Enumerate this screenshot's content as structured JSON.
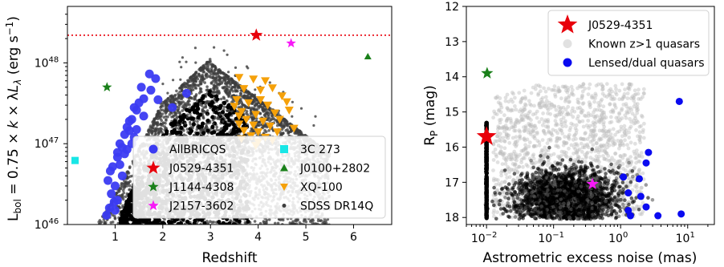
{
  "chart_data": [
    {
      "type": "scatter",
      "xlabel": "Redshift",
      "ylabel": "L_bol = 0.75 × k × λL_λ (erg s⁻¹)",
      "ylabel_parts": [
        "L",
        "bol",
        " = 0.75 × ",
        "k",
        " × λ",
        "L",
        "λ",
        " (erg s",
        "−1",
        ")"
      ],
      "x_scale": "linear",
      "y_scale": "log",
      "xlim": [
        0,
        6.8
      ],
      "ylim": [
        1e+46,
        5e+48
      ],
      "x_ticks": [
        {
          "value": 1,
          "label": "1"
        },
        {
          "value": 2,
          "label": "2"
        },
        {
          "value": 3,
          "label": "3"
        },
        {
          "value": 4,
          "label": "4"
        },
        {
          "value": 5,
          "label": "5"
        },
        {
          "value": 6,
          "label": "6"
        }
      ],
      "y_ticks": [
        {
          "value": 1e+46,
          "base": "10",
          "exp": "46"
        },
        {
          "value": 1e+47,
          "base": "10",
          "exp": "47"
        },
        {
          "value": 1e+48,
          "base": "10",
          "exp": "48"
        }
      ],
      "hline": {
        "y": 2.2e+48,
        "color": "#e8000b",
        "style": "dotted"
      },
      "series": [
        {
          "name": "AllBRICQS",
          "marker": "circle",
          "color": "#3b3bf2",
          "points": [
            [
              0.95,
              5.2e+46
            ],
            [
              0.9,
              4.6e+46
            ],
            [
              0.85,
              3.5e+46
            ],
            [
              0.92,
              2.4e+46
            ],
            [
              0.88,
              1.6e+46
            ],
            [
              0.82,
              1.3e+46
            ],
            [
              0.98,
              1.9e+46
            ],
            [
              1.05,
              6.8e+46
            ],
            [
              1.1,
              1e+47
            ],
            [
              1.15,
              9e+46
            ],
            [
              1.2,
              1.3e+47
            ],
            [
              1.25,
              1.6e+47
            ],
            [
              1.3,
              1.45e+47
            ],
            [
              1.35,
              2e+47
            ],
            [
              1.45,
              2.6e+47
            ],
            [
              1.5,
              3.2e+47
            ],
            [
              1.6,
              3.6e+47
            ],
            [
              1.75,
              4.6e+47
            ],
            [
              1.85,
              6.4e+47
            ],
            [
              1.72,
              7.3e+47
            ],
            [
              1.55,
              5e+47
            ],
            [
              1.4,
              2.8e+47
            ],
            [
              1.3,
              1.9e+47
            ],
            [
              1.05,
              7.8e+46
            ],
            [
              1.1,
              5.5e+46
            ],
            [
              1.2,
              7.5e+46
            ],
            [
              1.15,
              4e+46
            ],
            [
              1.25,
              8.5e+46
            ],
            [
              1.4,
              1.2e+47
            ],
            [
              1.6,
              2.2e+47
            ],
            [
              1.9,
              3.5e+47
            ],
            [
              2.2,
              2.8e+47
            ],
            [
              2.5,
              4.2e+47
            ],
            [
              1.0,
              3e+46
            ],
            [
              1.05,
              2e+46
            ],
            [
              1.0,
              1.5e+46
            ],
            [
              1.35,
              1e+47
            ],
            [
              1.45,
              1.5e+47
            ]
          ]
        },
        {
          "name": "J0529-4351",
          "marker": "star",
          "color": "#e8000b",
          "points": [
            [
              3.96,
              2.2e+48
            ]
          ],
          "size": "large"
        },
        {
          "name": "J1144-4308",
          "marker": "star",
          "color": "#1a801a",
          "points": [
            [
              0.83,
              5e+47
            ]
          ]
        },
        {
          "name": "J2157-3602",
          "marker": "star",
          "color": "#f719f7",
          "points": [
            [
              4.69,
              1.75e+48
            ]
          ]
        },
        {
          "name": "3C 273",
          "marker": "square",
          "color": "#19e6e6",
          "points": [
            [
              0.16,
              6.2e+46
            ]
          ]
        },
        {
          "name": "J0100+2802",
          "marker": "triangle-up",
          "color": "#1a801a",
          "points": [
            [
              6.3,
              1.2e+48
            ]
          ]
        },
        {
          "name": "XQ-100",
          "marker": "triangle-down",
          "color": "#f5a10a",
          "points": [
            [
              3.6,
              6.6e+47
            ],
            [
              3.9,
              6.3e+47
            ],
            [
              4.15,
              6e+47
            ],
            [
              3.7,
              4.8e+47
            ],
            [
              4.05,
              4.6e+47
            ],
            [
              4.3,
              4.9e+47
            ],
            [
              4.5,
              3.9e+47
            ],
            [
              3.55,
              3.5e+47
            ],
            [
              3.8,
              3.2e+47
            ],
            [
              4.2,
              3e+47
            ],
            [
              4.6,
              3.3e+47
            ],
            [
              3.65,
              2.5e+47
            ],
            [
              3.95,
              2.3e+47
            ],
            [
              4.35,
              2.4e+47
            ],
            [
              3.75,
              2e+47
            ],
            [
              4.1,
              1.9e+47
            ],
            [
              4.45,
              2e+47
            ],
            [
              3.6,
              1.75e+47
            ],
            [
              3.9,
              1.7e+47
            ],
            [
              4.25,
              1.65e+47
            ],
            [
              3.7,
              1.45e+47
            ],
            [
              4.0,
              1.4e+47
            ],
            [
              4.4,
              1.4e+47
            ],
            [
              3.85,
              1.25e+47
            ],
            [
              4.15,
              1.2e+47
            ],
            [
              3.65,
              1.15e+47
            ],
            [
              4.0,
              1.05e+47
            ],
            [
              4.3,
              1.1e+47
            ],
            [
              3.95,
              9.5e+46
            ],
            [
              3.6,
              2.2e+47
            ],
            [
              4.65,
              2.6e+47
            ],
            [
              4.75,
              1.55e+47
            ],
            [
              3.5,
              2.9e+47
            ],
            [
              4.05,
              3.5e+47
            ]
          ]
        },
        {
          "name": "SDSS DR14Q",
          "marker": "circle-small",
          "color": "#3d3d3d",
          "points": "dense-cloud"
        }
      ],
      "legend": {
        "location": "lower-right",
        "columns": 2,
        "entries": [
          "AllBRICQS",
          "J0529-4351",
          "J1144-4308",
          "J2157-3602",
          "3C 273",
          "J0100+2802",
          "XQ-100",
          "SDSS DR14Q"
        ]
      }
    },
    {
      "type": "scatter",
      "xlabel": "Astrometric excess noise  (mas)",
      "ylabel": "R_P (mag)",
      "ylabel_parts": [
        "R",
        "P",
        "  (mag)"
      ],
      "x_scale": "log",
      "y_scale": "linear",
      "y_inverted": true,
      "xlim": [
        0.005,
        25
      ],
      "ylim": [
        18.2,
        12
      ],
      "x_ticks": [
        {
          "value": 0.01,
          "base": "10",
          "exp": "−2"
        },
        {
          "value": 0.1,
          "base": "10",
          "exp": "−1"
        },
        {
          "value": 1,
          "base": "10",
          "exp": "0"
        },
        {
          "value": 10,
          "base": "10",
          "exp": "1"
        }
      ],
      "y_ticks": [
        {
          "value": 12,
          "label": "12"
        },
        {
          "value": 13,
          "label": "13"
        },
        {
          "value": 14,
          "label": "14"
        },
        {
          "value": 15,
          "label": "15"
        },
        {
          "value": 16,
          "label": "16"
        },
        {
          "value": 17,
          "label": "17"
        },
        {
          "value": 18,
          "label": "18"
        }
      ],
      "series": [
        {
          "name": "J0529-4351",
          "marker": "star",
          "color": "#e8000b",
          "points": [
            [
              0.01,
              15.7
            ]
          ],
          "size": "large"
        },
        {
          "name": "Known z>1 quasars",
          "marker": "circle",
          "color": "#bdbdbd",
          "points": "dense-cloud"
        },
        {
          "name": "Lensed/dual quasars",
          "marker": "circle",
          "color": "#0a0af0",
          "points": [
            [
              7.5,
              14.7
            ],
            [
              2.6,
              16.15
            ],
            [
              2.4,
              16.45
            ],
            [
              1.1,
              16.85
            ],
            [
              1.9,
              16.9
            ],
            [
              1.3,
              17.3
            ],
            [
              2.0,
              17.4
            ],
            [
              2.4,
              17.7
            ],
            [
              1.3,
              17.8
            ],
            [
              1.4,
              17.95
            ],
            [
              3.6,
              17.95
            ],
            [
              8.0,
              17.9
            ]
          ]
        },
        {
          "name": "J1144-4308",
          "marker": "star",
          "color": "#1a801a",
          "points": [
            [
              0.0102,
              13.9
            ]
          ],
          "legend": false
        },
        {
          "name": "J2157-3602",
          "marker": "star",
          "color": "#f719f7",
          "points": [
            [
              0.38,
              17.05
            ]
          ],
          "legend": false
        }
      ],
      "legend": {
        "location": "upper-right",
        "columns": 1,
        "entries": [
          "J0529-4351",
          "Known z>1 quasars",
          "Lensed/dual quasars"
        ]
      }
    }
  ]
}
